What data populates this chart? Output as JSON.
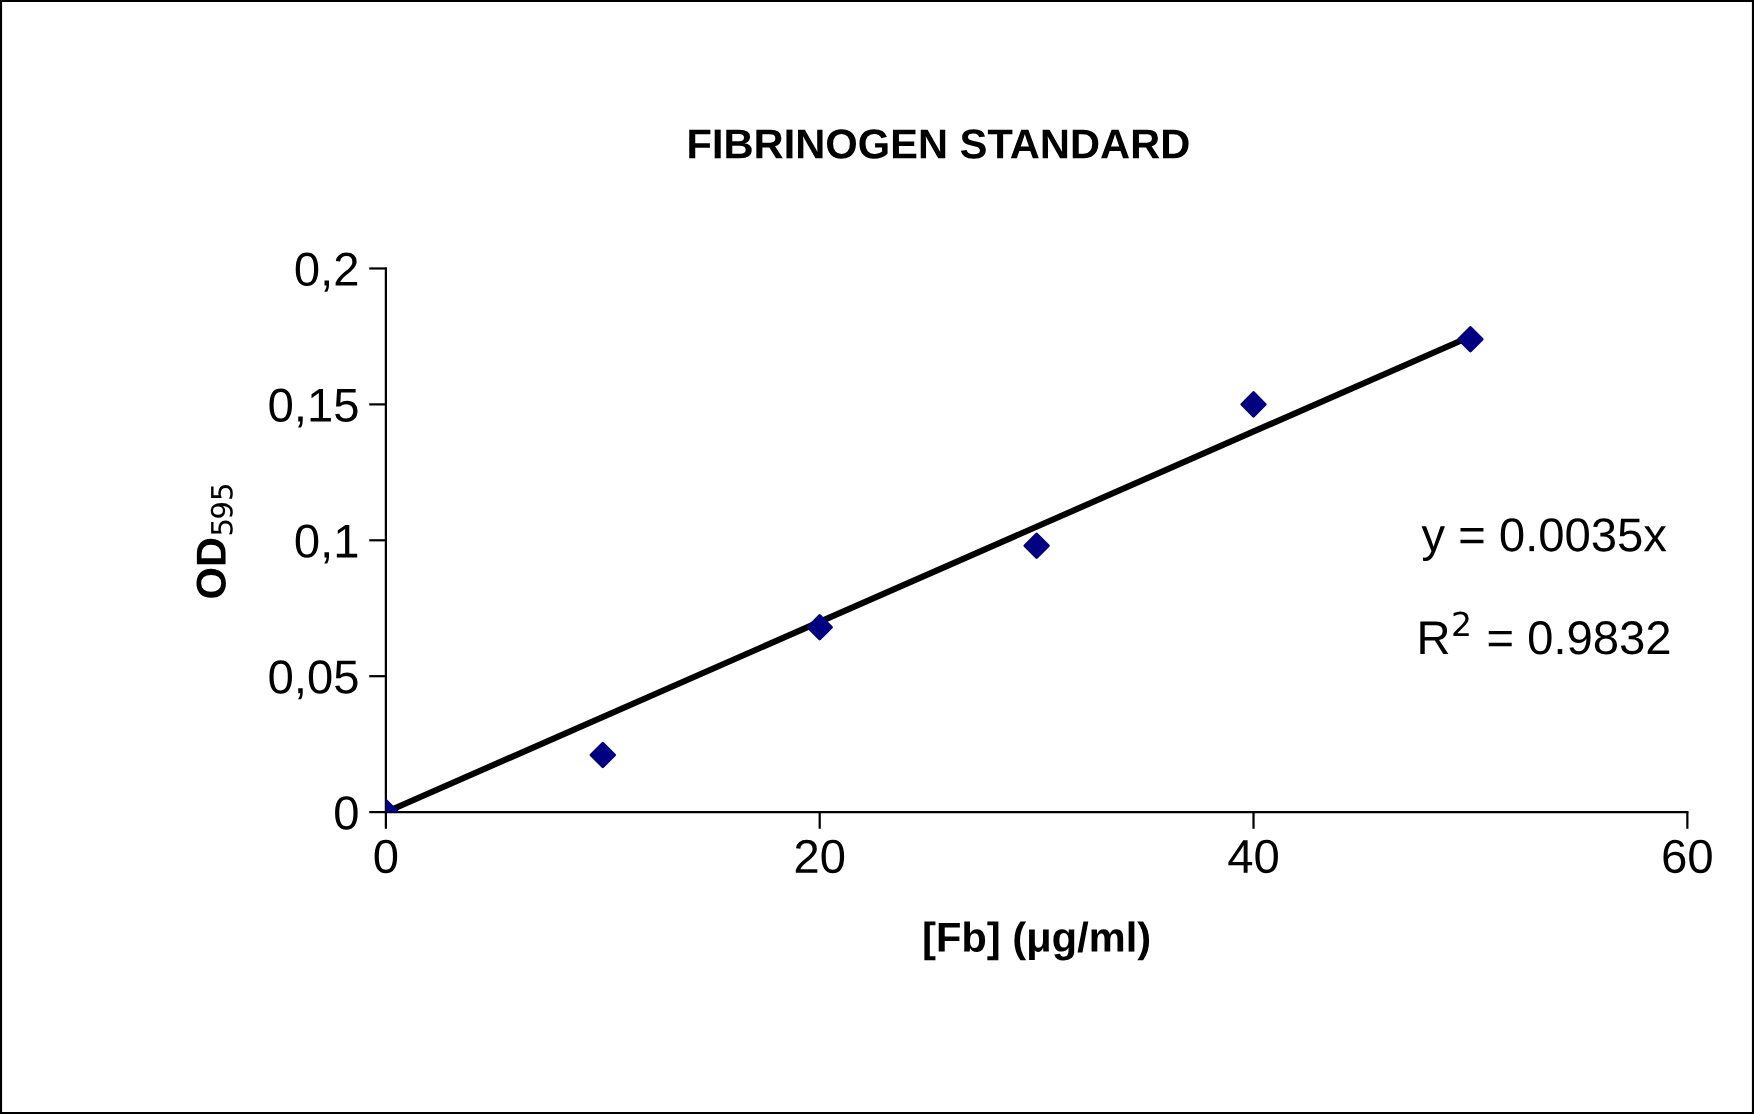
{
  "chart_data": {
    "type": "scatter",
    "title": "FIBRINOGEN STANDARD",
    "xlabel": "[Fb] (μg/ml)",
    "ylabel": "OD$_{595}$",
    "x": [
      0,
      10,
      20,
      30,
      40,
      50
    ],
    "series": [
      {
        "color": "#000080",
        "values": [
          0,
          0.021,
          0.068,
          0.098,
          0.15,
          0.174
        ],
        "marker": "diamond"
      },
      {
        "type": "line",
        "color": "#000000",
        "x": [
          0,
          50
        ],
        "values": [
          0,
          0.175
        ],
        "marker": "none",
        "line_style": "solid"
      }
    ],
    "xlim": [
      0,
      60
    ],
    "xticks": [
      0,
      20,
      40,
      60
    ],
    "ylim": [
      0,
      0.2
    ],
    "yticks": [
      {
        "value": 0,
        "label": "0"
      },
      {
        "value": 0.05,
        "label": "0,05"
      },
      {
        "value": 0.1,
        "label": "0,1"
      },
      {
        "value": 0.15,
        "label": "0,15"
      },
      {
        "value": 0.2,
        "label": "0,2"
      }
    ],
    "grid": false,
    "legend": false,
    "annotations": [
      "y = 0.0035x",
      "R$^{2}$ = 0.9832"
    ]
  }
}
